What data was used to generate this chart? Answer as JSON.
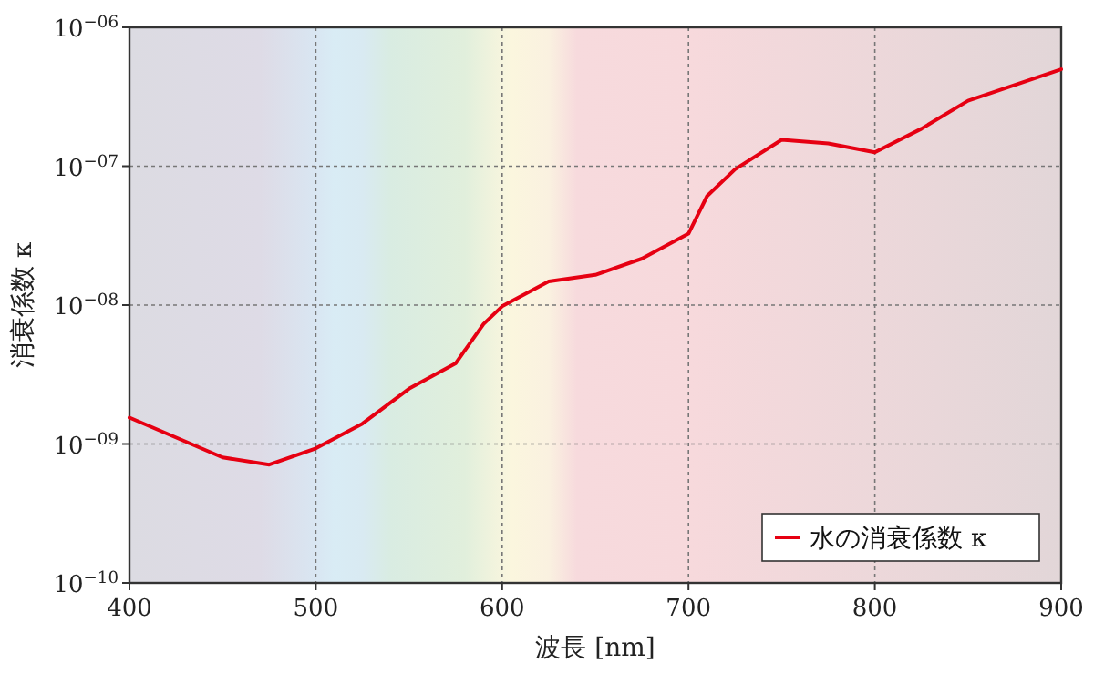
{
  "chart_data": {
    "type": "line",
    "xlabel": "波長 [nm]",
    "ylabel": "消衰係数 κ",
    "log": "y",
    "grid": true,
    "line_style": "solid",
    "marker": "none",
    "legend": "bottom right",
    "xlim": [
      400,
      900
    ],
    "xticks": [
      400,
      500,
      600,
      700,
      800,
      900
    ],
    "ylim": [
      1e-10,
      1e-06
    ],
    "yticks": [
      {
        "value": 1e-10,
        "label": "10$^{−10}$"
      },
      {
        "value": 1e-09,
        "label": "10$^{−09}$"
      },
      {
        "value": 1e-08,
        "label": "10$^{−08}$"
      },
      {
        "value": 1e-07,
        "label": "10$^{−07}$"
      },
      {
        "value": 1e-06,
        "label": "10$^{−06}$"
      }
    ],
    "x": [
      400,
      450,
      475,
      500,
      525,
      550,
      575,
      590,
      600,
      625,
      650,
      675,
      700,
      710,
      725,
      750,
      775,
      800,
      825,
      850,
      900
    ],
    "series": [
      {
        "name": "水の消衰係数 κ",
        "color": "#e60012",
        "values": [
          1.55e-09,
          8e-10,
          7.1e-10,
          9.3e-10,
          1.4e-09,
          2.5e-09,
          3.8e-09,
          7.3e-09,
          9.8e-09,
          1.48e-08,
          1.65e-08,
          2.16e-08,
          3.27e-08,
          6.1e-08,
          9.5e-08,
          1.55e-07,
          1.46e-07,
          1.26e-07,
          1.86e-07,
          2.96e-07,
          4.99e-07
        ]
      }
    ]
  }
}
